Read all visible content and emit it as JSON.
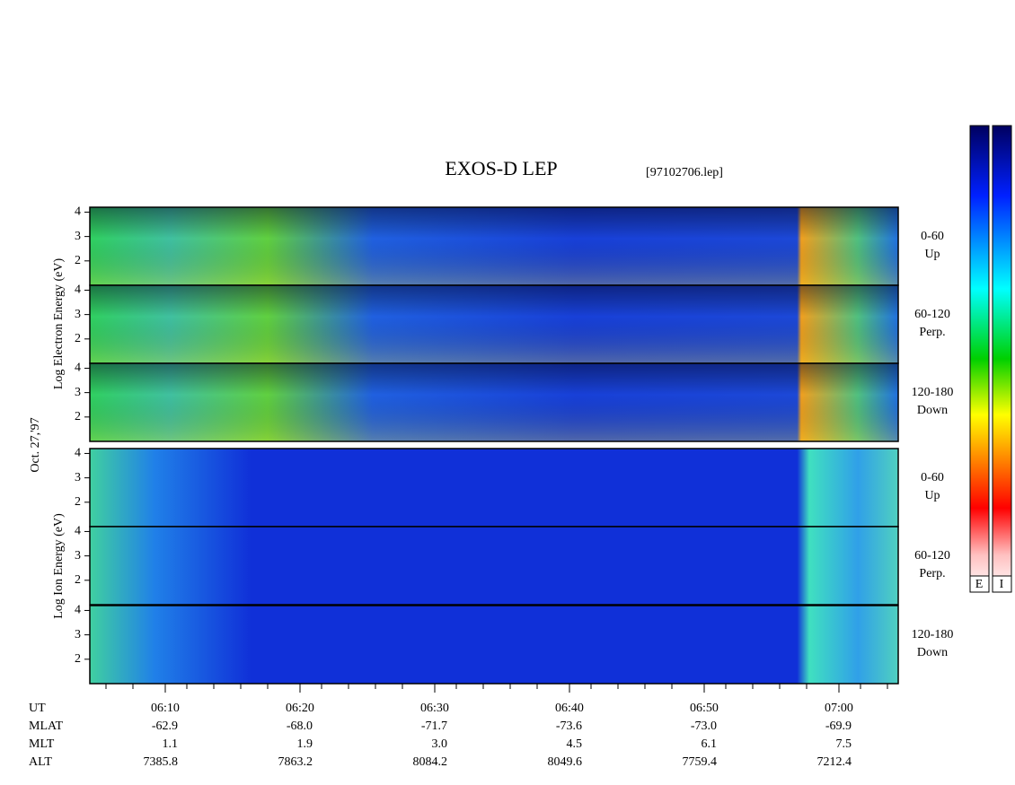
{
  "chart_data": {
    "type": "spectrogram",
    "title": "EXOS-D LEP",
    "file_label": "[97102706.lep]",
    "date_label": "Oct. 27,'97",
    "electron_axis_label": "Log  Electron  Energy (eV)",
    "ion_axis_label": "Log  Ion  Energy (eV)",
    "ylim": [
      1,
      4.2
    ],
    "yticks": [
      2,
      3,
      4
    ],
    "xlim": [
      4.4,
      64.4
    ],
    "xticks": [
      {
        "value": 10,
        "label": "06:10"
      },
      {
        "value": 20,
        "label": "06:20"
      },
      {
        "value": 30,
        "label": "06:30"
      },
      {
        "value": 40,
        "label": "06:40"
      },
      {
        "value": 50,
        "label": "06:50"
      },
      {
        "value": 60,
        "label": "07:00"
      }
    ],
    "minor_xticks": [
      5.6,
      7.6,
      11.6,
      13.6,
      15.6,
      17.6,
      21.6,
      23.6,
      25.6,
      27.6,
      31.6,
      33.6,
      35.6,
      37.6,
      41.6,
      43.6,
      45.6,
      47.6,
      51.6,
      53.6,
      55.6,
      57.6,
      61.6,
      63.6
    ],
    "panels": [
      {
        "species": "electron",
        "angle": "0-60",
        "direction": "Up"
      },
      {
        "species": "electron",
        "angle": "60-120",
        "direction": "Perp."
      },
      {
        "species": "electron",
        "angle": "120-180",
        "direction": "Down"
      },
      {
        "species": "ion",
        "angle": "0-60",
        "direction": "Up"
      },
      {
        "species": "ion",
        "angle": "60-120",
        "direction": "Perp."
      },
      {
        "species": "ion",
        "angle": "120-180",
        "direction": "Down"
      }
    ],
    "ephemeris": [
      {
        "name": "UT"
      },
      {
        "name": "MLAT",
        "values": [
          "-62.9",
          "-68.0",
          "-71.7",
          "-73.6",
          "-73.0",
          "-69.9"
        ]
      },
      {
        "name": "MLT",
        "values": [
          "1.1",
          "1.9",
          "3.0",
          "4.5",
          "6.1",
          "7.5"
        ]
      },
      {
        "name": "ALT",
        "values": [
          "7385.8",
          "7863.2",
          "8084.2",
          "8049.6",
          "7759.4",
          "7212.4"
        ]
      }
    ],
    "colorbar_labels": [
      "E",
      "I"
    ]
  }
}
